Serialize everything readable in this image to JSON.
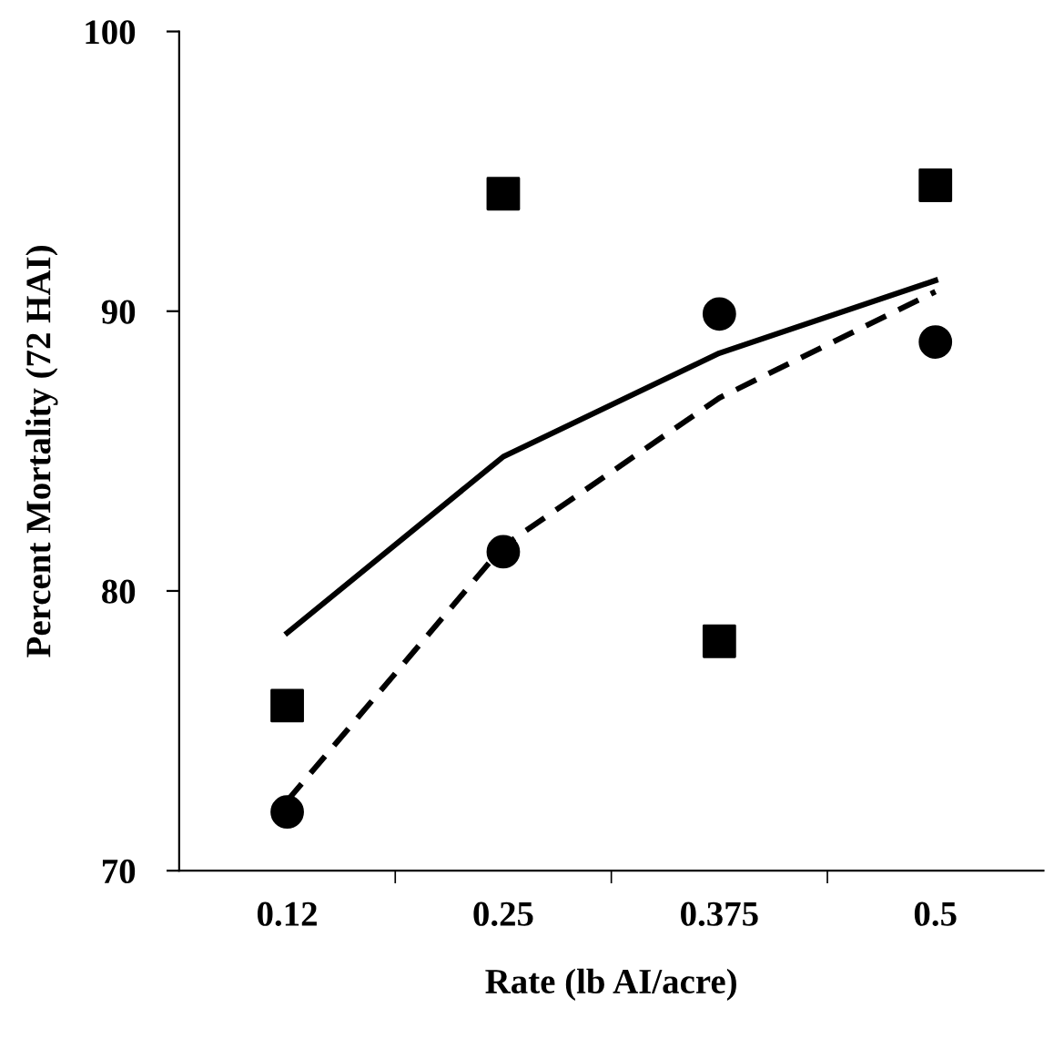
{
  "chart_data": {
    "type": "scatter",
    "xlabel": "Rate (lb AI/acre)",
    "ylabel": "Percent Mortality (72 HAI)",
    "categories": [
      "0.12",
      "0.25",
      "0.375",
      "0.5"
    ],
    "ylim": [
      70,
      100
    ],
    "yticks": [
      70,
      80,
      90,
      100
    ],
    "grid": false,
    "series": [
      {
        "marker": "square",
        "color": "#000000",
        "values": [
          75.9,
          94.2,
          78.2,
          94.5
        ]
      },
      {
        "marker": "circle",
        "color": "#000000",
        "values": [
          72.1,
          81.4,
          89.9,
          88.9
        ]
      },
      {
        "type": "line",
        "line_style": "solid",
        "color": "#000000",
        "x": [
          "0.12",
          "0.25",
          "0.375",
          "0.5"
        ],
        "values": [
          78.5,
          84.8,
          88.5,
          91.1
        ]
      },
      {
        "type": "line",
        "line_style": "dashed",
        "color": "#000000",
        "x": [
          "0.12",
          "0.25",
          "0.375",
          "0.5"
        ],
        "values": [
          72.5,
          81.6,
          86.9,
          90.7
        ]
      }
    ]
  }
}
